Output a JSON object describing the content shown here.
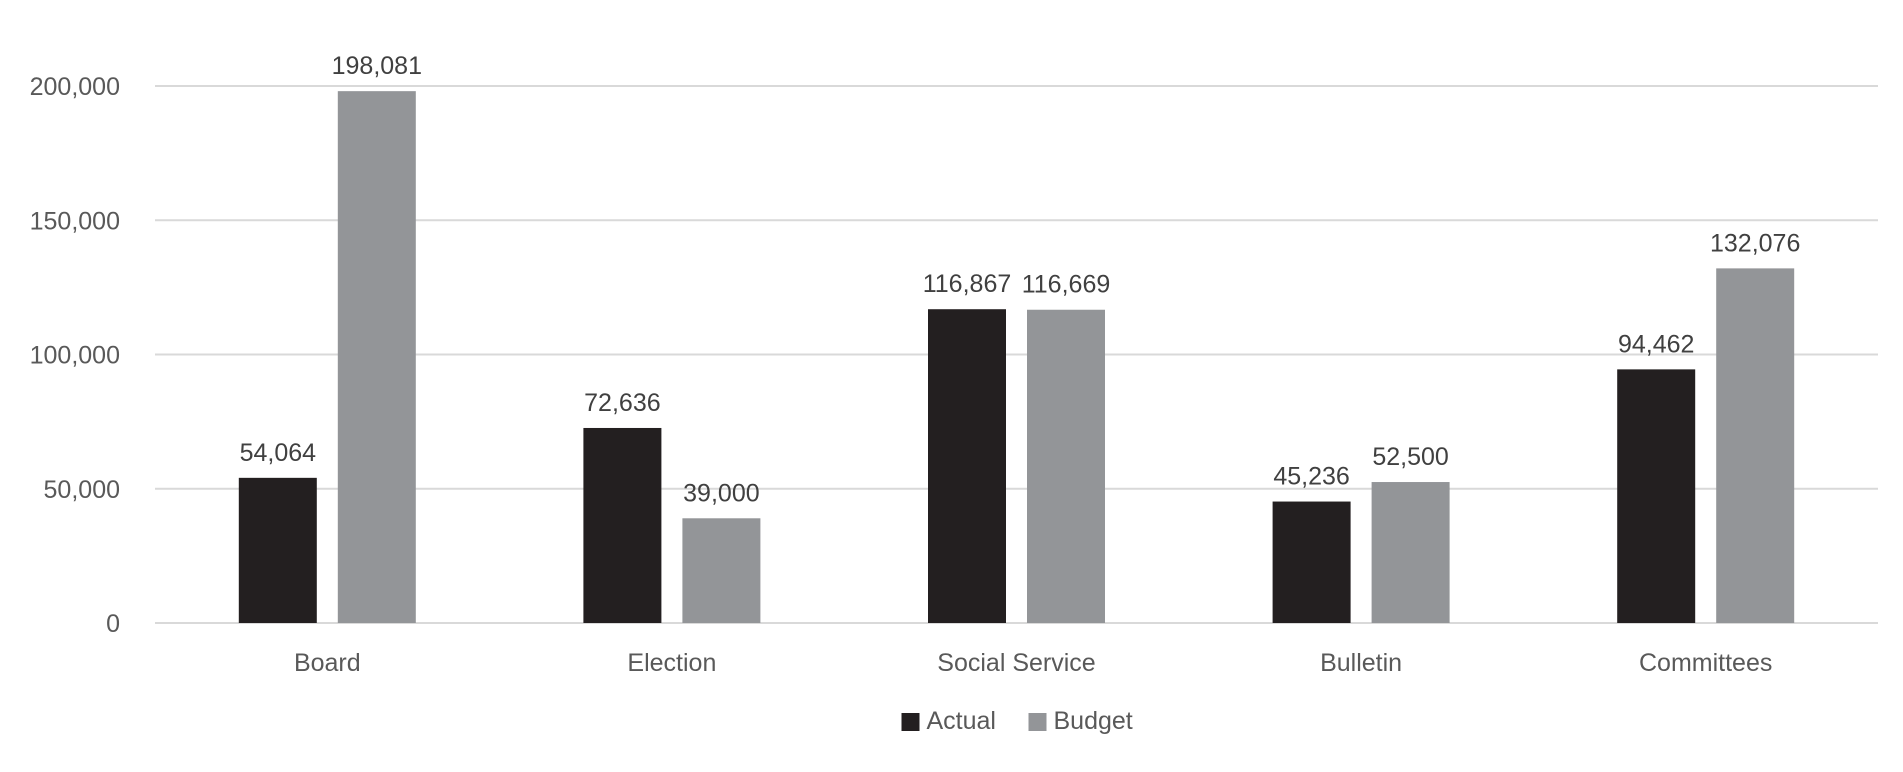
{
  "chart_data": {
    "type": "bar",
    "title": "",
    "xlabel": "",
    "ylabel": "",
    "categories": [
      "Board",
      "Election",
      "Social Service",
      "Bulletin",
      "Committees"
    ],
    "series": [
      {
        "name": "Actual",
        "color": "#231f20",
        "values": [
          54064,
          72636,
          116867,
          45236,
          94462
        ]
      },
      {
        "name": "Budget",
        "color": "#939598",
        "values": [
          198081,
          39000,
          116669,
          52500,
          132076
        ]
      }
    ],
    "ylim": [
      0,
      200000
    ],
    "yticks": [
      0,
      50000,
      100000,
      150000,
      200000
    ],
    "ytick_labels": [
      "0",
      "50,000",
      "100,000",
      "150,000",
      "200,000"
    ],
    "data_labels": [
      [
        "54,064",
        "72,636",
        "116,867",
        "45,236",
        "94,462"
      ],
      [
        "198,081",
        "39,000",
        "116,669",
        "52,500",
        "132,076"
      ]
    ],
    "grid": true,
    "legend": {
      "position": "bottom",
      "items": [
        "Actual",
        "Budget"
      ]
    }
  }
}
